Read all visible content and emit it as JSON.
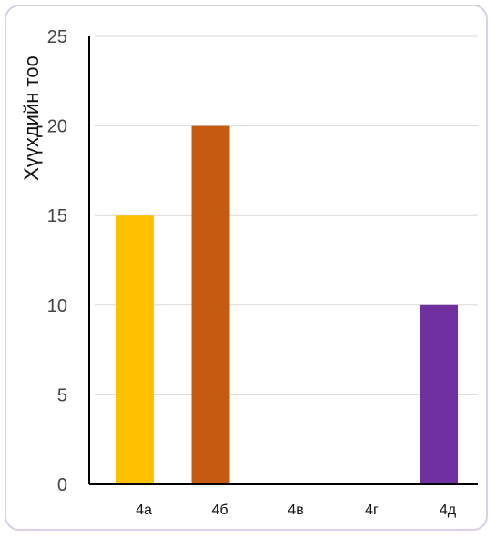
{
  "chart_data": {
    "type": "bar",
    "categories": [
      "4а",
      "4б",
      "4в",
      "4г",
      "4д"
    ],
    "values": [
      15,
      20,
      0,
      0,
      10
    ],
    "colors": [
      "#FFC000",
      "#C55A11",
      "#4472C4",
      "#70AD47",
      "#7030A0"
    ],
    "title": "",
    "xlabel": "",
    "ylabel": "Хүүхдийн тоо",
    "ylim": [
      0,
      25
    ],
    "yticks": [
      0,
      5,
      10,
      15,
      20,
      25
    ],
    "grid": true,
    "legend": "none"
  }
}
